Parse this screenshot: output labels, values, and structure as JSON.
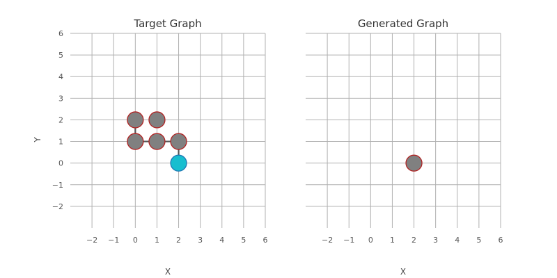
{
  "colors": {
    "grid": "#b0b0b0",
    "node_fill": "#808080",
    "node_border": "#b22222",
    "highlight_fill": "#17becf",
    "highlight_border": "#1f77b4",
    "edge": "#555555"
  },
  "chart_data": [
    {
      "type": "scatter",
      "title": "Target Graph",
      "xlabel": "X",
      "ylabel": "Y",
      "xlim": [
        -3,
        6
      ],
      "ylim": [
        -3,
        6
      ],
      "xticks": [
        -2,
        -1,
        0,
        1,
        2,
        3,
        4,
        5,
        6
      ],
      "yticks": [
        -2,
        -1,
        0,
        1,
        2,
        3,
        4,
        5,
        6
      ],
      "xtick_labels": [
        "−2",
        "−1",
        "0",
        "1",
        "2",
        "3",
        "4",
        "5",
        "6"
      ],
      "ytick_labels": [
        "−2",
        "−1",
        "0",
        "1",
        "2",
        "3",
        "4",
        "5",
        "6"
      ],
      "grid": true,
      "nodes": [
        {
          "x": 0,
          "y": 2,
          "highlight": false
        },
        {
          "x": 1,
          "y": 2,
          "highlight": false
        },
        {
          "x": 0,
          "y": 1,
          "highlight": false
        },
        {
          "x": 1,
          "y": 1,
          "highlight": false
        },
        {
          "x": 2,
          "y": 1,
          "highlight": false
        },
        {
          "x": 2,
          "y": 0,
          "highlight": true
        }
      ],
      "edges": [
        {
          "from": [
            0,
            2
          ],
          "to": [
            0,
            1
          ]
        },
        {
          "from": [
            0,
            1
          ],
          "to": [
            1,
            1
          ]
        },
        {
          "from": [
            1,
            1
          ],
          "to": [
            2,
            1
          ]
        },
        {
          "from": [
            2,
            1
          ],
          "to": [
            2,
            0
          ]
        }
      ]
    },
    {
      "type": "scatter",
      "title": "Generated Graph",
      "xlabel": "X",
      "ylabel": "",
      "xlim": [
        -3,
        6
      ],
      "ylim": [
        -3,
        6
      ],
      "xticks": [
        -2,
        -1,
        0,
        1,
        2,
        3,
        4,
        5,
        6
      ],
      "yticks": [
        -2,
        -1,
        0,
        1,
        2,
        3,
        4,
        5,
        6
      ],
      "xtick_labels": [
        "−2",
        "−1",
        "0",
        "1",
        "2",
        "3",
        "4",
        "5",
        "6"
      ],
      "ytick_labels": [
        "",
        "",
        "",
        "",
        "",
        "",
        "",
        "",
        ""
      ],
      "grid": true,
      "nodes": [
        {
          "x": 2,
          "y": 0,
          "highlight": false
        }
      ],
      "edges": []
    }
  ]
}
